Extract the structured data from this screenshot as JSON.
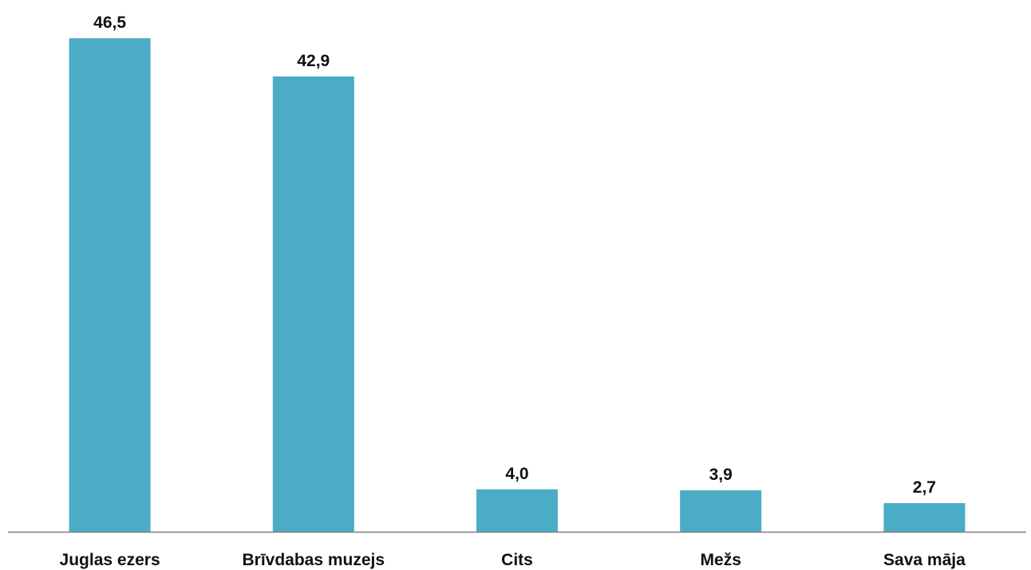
{
  "colors": {
    "bar": "#4BACC6",
    "axis": "#7F7F7F",
    "text": "#111111",
    "background": "#FFFFFF"
  },
  "chart_data": {
    "type": "bar",
    "categories": [
      "Juglas ezers",
      "Brīvdabas muzejs",
      "Cits",
      "Mežs",
      "Sava māja"
    ],
    "values": [
      46.5,
      42.9,
      4.0,
      3.9,
      2.7
    ],
    "value_labels": [
      "46,5",
      "42,9",
      "4,0",
      "3,9",
      "2,7"
    ],
    "title": "",
    "xlabel": "",
    "ylabel": "",
    "ylim": [
      0,
      50
    ],
    "grid": false,
    "legend": "none",
    "y_axis_visible": false
  }
}
